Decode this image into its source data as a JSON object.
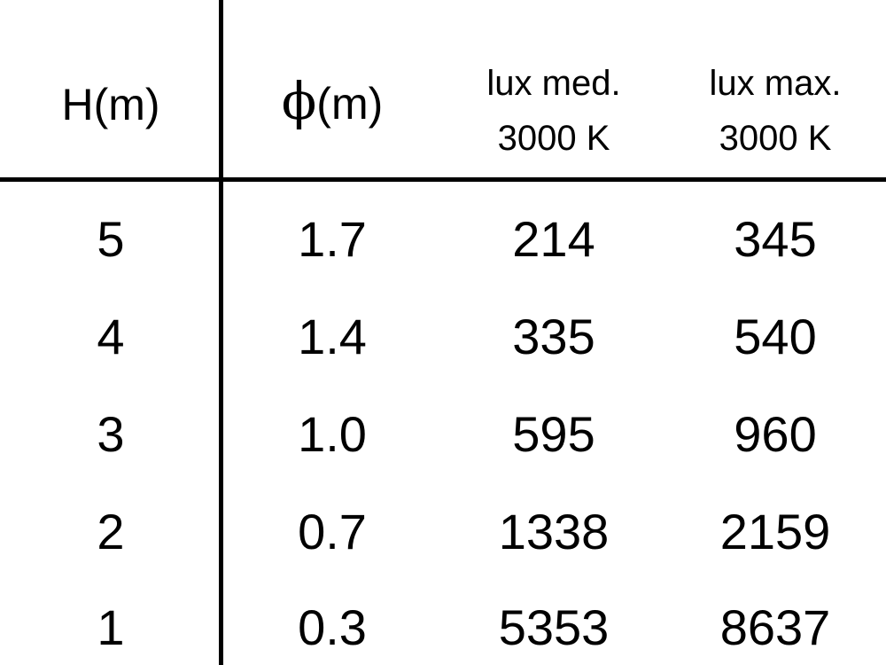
{
  "table": {
    "headers": [
      {
        "line1": "H(m)"
      },
      {
        "symbol": "ϕ",
        "line1": "(m)"
      },
      {
        "line1": "lux med.",
        "line2": "3000 K"
      },
      {
        "line1": "lux max.",
        "line2": "3000 K"
      }
    ],
    "rows": [
      [
        "5",
        "1.7",
        "214",
        "345"
      ],
      [
        "4",
        "1.4",
        "335",
        "540"
      ],
      [
        "3",
        "1.0",
        "595",
        "960"
      ],
      [
        "2",
        "0.7",
        "1338",
        "2159"
      ],
      [
        "1",
        "0.3",
        "5353",
        "8637"
      ]
    ]
  }
}
